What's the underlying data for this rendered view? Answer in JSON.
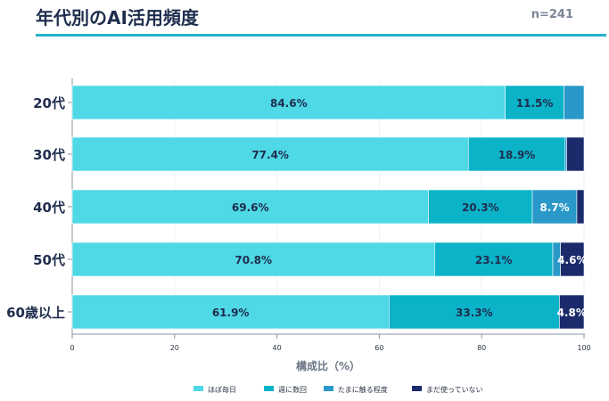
{
  "header": {
    "title": "年代別のAI活用頻度",
    "sample": "n=241"
  },
  "colors": {
    "daily": "#4fd8e5",
    "weekly": "#0bb3c9",
    "sometimes": "#2a98c8",
    "none": "#1b2a6b",
    "axis": "#6b7687",
    "title": "#1f2d4d"
  },
  "chart_data": {
    "type": "bar",
    "orientation": "horizontal",
    "stacked": true,
    "categories": [
      "20代",
      "30代",
      "40代",
      "50代",
      "60歳以上"
    ],
    "series": [
      {
        "name": "ほぼ毎日",
        "values": [
          84.6,
          77.4,
          69.6,
          70.8,
          61.9
        ],
        "labels": [
          "84.6%",
          "77.4%",
          "69.6%",
          "70.8%",
          "61.9%"
        ]
      },
      {
        "name": "週に数回",
        "values": [
          11.5,
          18.9,
          20.3,
          23.1,
          33.3
        ],
        "labels": [
          "11.5%",
          "18.9%",
          "20.3%",
          "23.1%",
          "33.3%"
        ]
      },
      {
        "name": "たまに触る程度",
        "values": [
          3.9,
          0.3,
          8.7,
          1.5,
          0.0
        ],
        "labels": [
          "",
          "",
          "8.7%",
          "",
          ""
        ]
      },
      {
        "name": "まだ使っていない",
        "values": [
          0.0,
          3.4,
          1.4,
          4.6,
          4.8
        ],
        "labels": [
          "",
          "",
          "",
          "4.6%",
          "4.8%"
        ]
      }
    ],
    "xlabel": "構成比（%）",
    "xlim": [
      0,
      100
    ],
    "xticks": [
      "0",
      "20",
      "40",
      "60",
      "80",
      "100"
    ],
    "legend": "bottom"
  }
}
